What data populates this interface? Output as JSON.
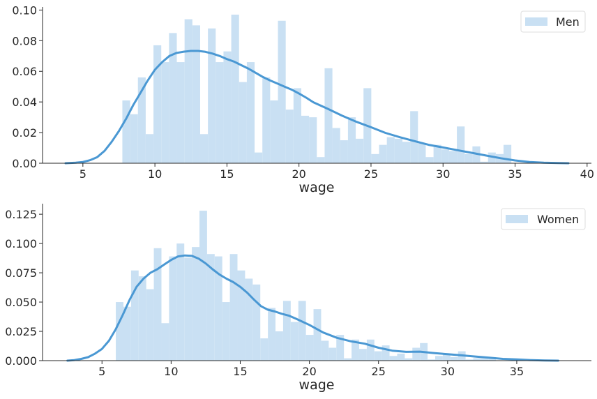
{
  "chart_data": [
    {
      "type": "bar",
      "panel": "top",
      "xlabel": "wage",
      "ylabel": "",
      "xlim": [
        2.2,
        40.3
      ],
      "ylim": [
        0,
        0.102
      ],
      "xticks": [
        5,
        10,
        15,
        20,
        25,
        30,
        35,
        40
      ],
      "yticks": [
        0.0,
        0.02,
        0.04,
        0.06,
        0.08,
        0.1
      ],
      "xtick_labels": [
        "5",
        "10",
        "15",
        "20",
        "25",
        "30",
        "35",
        "40"
      ],
      "ytick_labels": [
        "0.00",
        "0.02",
        "0.04",
        "0.06",
        "0.08",
        "0.10"
      ],
      "legend": {
        "position": "top-right",
        "entries": [
          "Men"
        ]
      },
      "grid": false,
      "bar_color": "#c9e0f3",
      "line_color": "#4a98d3",
      "histogram": {
        "bin_start": 7.74,
        "bin_width": 0.54,
        "densities": [
          0.041,
          0.032,
          0.056,
          0.019,
          0.077,
          0.066,
          0.085,
          0.066,
          0.094,
          0.09,
          0.019,
          0.088,
          0.066,
          0.073,
          0.097,
          0.053,
          0.066,
          0.007,
          0.056,
          0.041,
          0.093,
          0.035,
          0.049,
          0.031,
          0.03,
          0.004,
          0.062,
          0.023,
          0.015,
          0.03,
          0.016,
          0.049,
          0.006,
          0.012,
          0.017,
          0.016,
          0.014,
          0.034,
          0.013,
          0.004,
          0.012,
          0.009,
          0.008,
          0.024,
          0.006,
          0.011,
          0.001,
          0.007,
          0.006,
          0.012
        ]
      },
      "kde": {
        "x": [
          3.8,
          4.5,
          5.0,
          5.5,
          6.0,
          6.5,
          7.0,
          7.5,
          8.0,
          8.5,
          9.0,
          9.5,
          10.0,
          10.5,
          11.0,
          11.5,
          12.0,
          12.5,
          13.0,
          13.5,
          14.0,
          14.5,
          15.0,
          15.5,
          16.0,
          16.5,
          17.0,
          17.5,
          18.0,
          18.5,
          19.0,
          19.5,
          20.0,
          20.5,
          21.0,
          22.0,
          23.0,
          24.0,
          25.0,
          26.0,
          27.0,
          28.0,
          29.0,
          30.0,
          31.0,
          32.0,
          33.0,
          34.0,
          35.0,
          36.0,
          37.0,
          38.0,
          38.7
        ],
        "y": [
          0.0,
          0.0003,
          0.0008,
          0.002,
          0.004,
          0.008,
          0.014,
          0.021,
          0.029,
          0.038,
          0.046,
          0.054,
          0.061,
          0.066,
          0.07,
          0.072,
          0.0728,
          0.0733,
          0.0733,
          0.0727,
          0.0716,
          0.07,
          0.068,
          0.0663,
          0.064,
          0.0617,
          0.059,
          0.0563,
          0.054,
          0.052,
          0.05,
          0.048,
          0.0455,
          0.0428,
          0.0398,
          0.0355,
          0.031,
          0.027,
          0.0235,
          0.0198,
          0.017,
          0.0145,
          0.012,
          0.0103,
          0.0085,
          0.0068,
          0.005,
          0.0033,
          0.0018,
          0.0008,
          0.0003,
          0.0001,
          0.0
        ]
      }
    },
    {
      "type": "bar",
      "panel": "bottom",
      "xlabel": "wage",
      "ylabel": "",
      "xlim": [
        0.7,
        40.4
      ],
      "ylim": [
        0,
        0.134
      ],
      "xticks": [
        5,
        10,
        15,
        20,
        25,
        30,
        35
      ],
      "yticks": [
        0.0,
        0.025,
        0.05,
        0.075,
        0.1,
        0.125
      ],
      "xtick_labels": [
        "5",
        "10",
        "15",
        "20",
        "25",
        "30",
        "35"
      ],
      "ytick_labels": [
        "0.000",
        "0.025",
        "0.050",
        "0.075",
        "0.100",
        "0.125"
      ],
      "legend": {
        "position": "top-right",
        "entries": [
          "Women"
        ]
      },
      "grid": false,
      "bar_color": "#c9e0f3",
      "line_color": "#4a98d3",
      "histogram": {
        "bin_start": 6.0,
        "bin_width": 0.55,
        "densities": [
          0.05,
          0.046,
          0.077,
          0.072,
          0.061,
          0.096,
          0.032,
          0.089,
          0.1,
          0.088,
          0.097,
          0.128,
          0.091,
          0.089,
          0.05,
          0.091,
          0.077,
          0.07,
          0.065,
          0.019,
          0.045,
          0.025,
          0.051,
          0.033,
          0.051,
          0.022,
          0.044,
          0.017,
          0.011,
          0.022,
          0.002,
          0.018,
          0.01,
          0.018,
          0.008,
          0.013,
          0.004,
          0.006,
          0.002,
          0.011,
          0.015,
          0.001,
          0.004,
          0.006,
          0.003,
          0.008,
          0.001,
          0.002,
          0.002,
          0.003
        ]
      },
      "kde": {
        "x": [
          2.5,
          3.0,
          3.5,
          4.0,
          4.5,
          5.0,
          5.5,
          6.0,
          6.5,
          7.0,
          7.5,
          8.0,
          8.5,
          9.0,
          9.5,
          10.0,
          10.5,
          11.0,
          11.5,
          12.0,
          12.5,
          13.0,
          13.5,
          14.0,
          14.5,
          15.0,
          15.5,
          16.0,
          16.5,
          17.0,
          17.5,
          18.0,
          18.5,
          19.0,
          20.0,
          21.0,
          22.0,
          23.0,
          24.0,
          25.0,
          26.0,
          27.0,
          28.0,
          29.0,
          30.0,
          31.0,
          32.0,
          33.0,
          34.0,
          35.0,
          36.0,
          37.0,
          38.0
        ],
        "y": [
          0.0,
          0.0005,
          0.0015,
          0.003,
          0.006,
          0.01,
          0.017,
          0.027,
          0.039,
          0.052,
          0.063,
          0.07,
          0.075,
          0.078,
          0.082,
          0.086,
          0.089,
          0.0898,
          0.0895,
          0.087,
          0.083,
          0.078,
          0.0735,
          0.07,
          0.067,
          0.063,
          0.058,
          0.052,
          0.0465,
          0.0435,
          0.042,
          0.04,
          0.0385,
          0.036,
          0.0305,
          0.024,
          0.0195,
          0.0165,
          0.0145,
          0.011,
          0.0085,
          0.0075,
          0.0077,
          0.0065,
          0.0055,
          0.0045,
          0.0035,
          0.0025,
          0.0015,
          0.001,
          0.0005,
          0.0002,
          0.0
        ]
      }
    }
  ]
}
